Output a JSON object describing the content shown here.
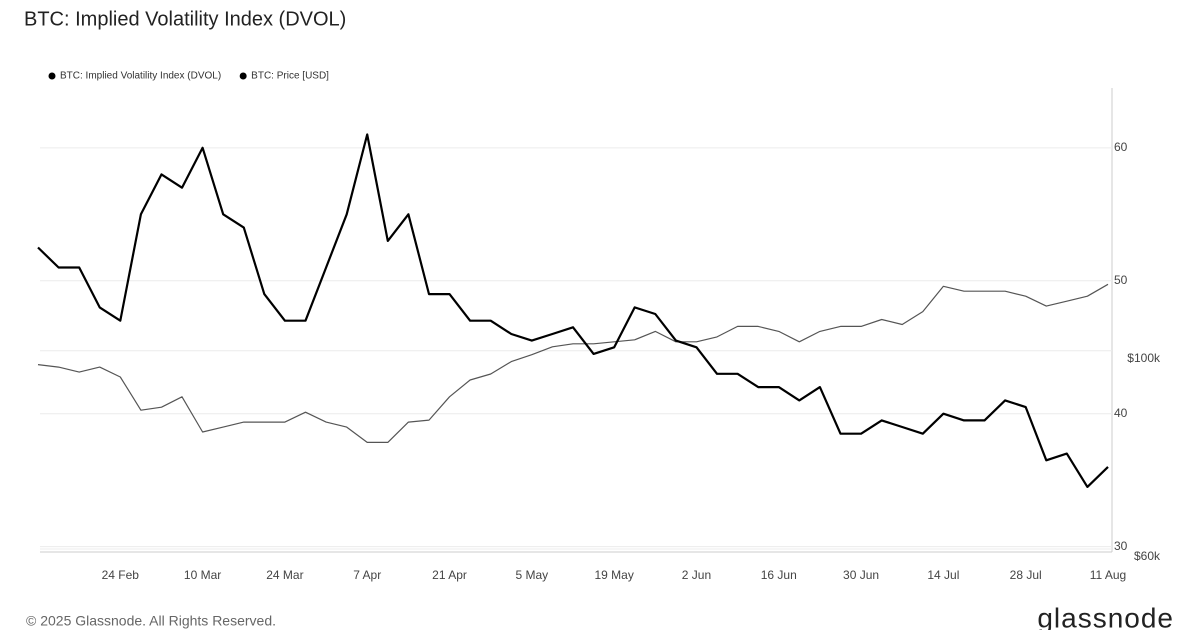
{
  "chart_data": {
    "type": "line",
    "title": "BTC: Implied Volatility Index (DVOL)",
    "categories": [
      null,
      null,
      null,
      null,
      "24 Feb",
      null,
      null,
      null,
      "10 Mar",
      null,
      null,
      null,
      "24 Mar",
      null,
      null,
      null,
      "7 Apr",
      null,
      null,
      null,
      "21 Apr",
      null,
      null,
      null,
      "5 May",
      null,
      null,
      null,
      "19 May",
      null,
      null,
      null,
      "2 Jun",
      null,
      null,
      null,
      "16 Jun",
      null,
      null,
      null,
      "30 Jun",
      null,
      null,
      null,
      "14 Jul",
      null,
      null,
      null,
      "28 Jul",
      null,
      null,
      null,
      "11 Aug"
    ],
    "series": [
      {
        "name": "BTC: Implied Volatility Index (DVOL)",
        "color": "#000000",
        "axis": "y",
        "values": [
          52.5,
          51,
          51,
          48,
          47,
          55,
          58,
          57,
          60,
          55,
          54,
          49,
          47,
          47,
          51,
          55,
          61,
          53,
          55,
          49,
          49,
          47,
          47,
          46,
          45.5,
          46,
          46.5,
          44.5,
          45,
          48,
          47.5,
          45.5,
          45,
          43,
          43,
          42,
          42,
          41,
          42,
          38.5,
          38.5,
          39.5,
          39,
          38.5,
          40,
          39.5,
          39.5,
          41,
          40.5,
          36.5,
          37,
          34.5,
          36
        ]
      },
      {
        "name": "BTC: Price [USD]",
        "color": "#555555",
        "axis": "y2",
        "values": [
          97200,
          96700,
          95700,
          96700,
          94700,
          88000,
          88600,
          90700,
          83600,
          84600,
          85600,
          85600,
          85600,
          87600,
          85600,
          84600,
          81500,
          81500,
          85600,
          86000,
          90700,
          94100,
          95300,
          97800,
          99200,
          100800,
          101400,
          101400,
          101800,
          102200,
          103900,
          101800,
          101800,
          102800,
          104900,
          104900,
          103900,
          101800,
          103900,
          104900,
          104900,
          106300,
          105300,
          107900,
          113000,
          112000,
          112000,
          112000,
          111000,
          109000,
          110000,
          111000,
          113400
        ]
      }
    ],
    "ylim": [
      29.6,
      64.5
    ],
    "yticks": [
      30,
      40,
      50,
      60
    ],
    "y2lim": [
      59400,
      153000
    ],
    "y2ticks": [
      {
        "value": 60000,
        "label": "$60k"
      },
      {
        "value": 100000,
        "label": "$100k"
      }
    ],
    "grid": true,
    "legend": "top-left",
    "source": "© 2025 Glassnode. All Rights Reserved.",
    "brand": "glassnode"
  }
}
